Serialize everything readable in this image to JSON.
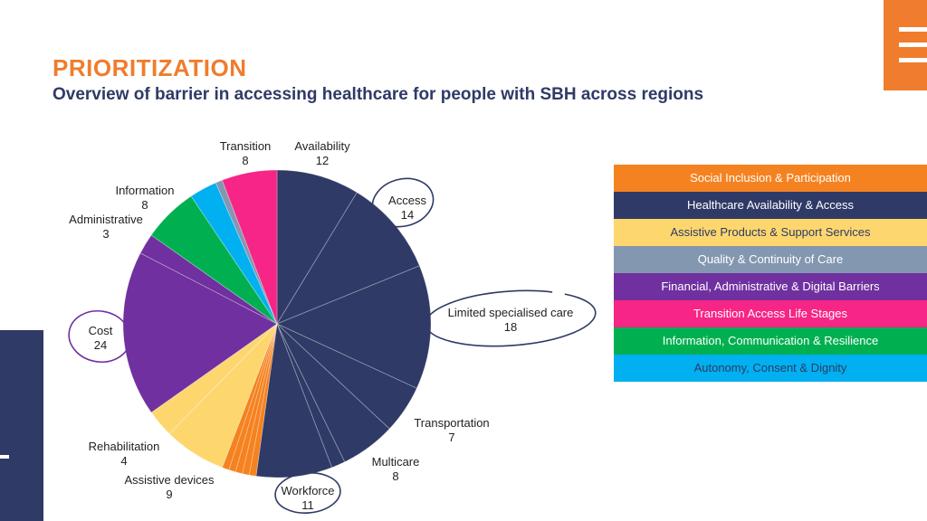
{
  "header": {
    "title": "PRIORITIZATION",
    "subtitle": "Overview of barrier in accessing healthcare for people with SBH across regions"
  },
  "legend": [
    {
      "label": "Social Inclusion & Participation",
      "color": "#f58220",
      "text_color": "#ffffff"
    },
    {
      "label": "Healthcare Availability & Access",
      "color": "#2f3a66",
      "text_color": "#ffffff"
    },
    {
      "label": "Assistive Products & Support Services",
      "color": "#fdd76e",
      "text_color": "#2f3a66"
    },
    {
      "label": "Quality & Continuity of Care",
      "color": "#8497b0",
      "text_color": "#ffffff"
    },
    {
      "label": "Financial, Administrative & Digital Barriers",
      "color": "#7030a0",
      "text_color": "#ffffff"
    },
    {
      "label": "Transition Access Life Stages",
      "color": "#f72585",
      "text_color": "#ffffff"
    },
    {
      "label": "Information, Communication & Resilience",
      "color": "#00b050",
      "text_color": "#ffffff"
    },
    {
      "label": "Autonomy, Consent & Dignity",
      "color": "#00b0f0",
      "text_color": "#2f3a66"
    }
  ],
  "chart_data": {
    "type": "pie",
    "title": "",
    "slices": [
      {
        "name": "Availability",
        "value": 12,
        "color": "#2f3a66",
        "show_label": true
      },
      {
        "name": "Access",
        "value": 14,
        "color": "#2f3a66",
        "show_label": true
      },
      {
        "name": "Limited specialised care",
        "value": 18,
        "color": "#2f3a66",
        "show_label": true
      },
      {
        "name": "Transportation",
        "value": 7,
        "color": "#2f3a66",
        "show_label": true
      },
      {
        "name": "Multicare",
        "value": 8,
        "color": "#2f3a66",
        "show_label": true
      },
      {
        "name": "",
        "value": 2,
        "color": "#2f3a66",
        "show_label": false
      },
      {
        "name": "Workforce",
        "value": 11,
        "color": "#2f3a66",
        "show_label": true
      },
      {
        "name": "",
        "value": 1,
        "color": "#f58220",
        "show_label": false
      },
      {
        "name": "",
        "value": 1,
        "color": "#f58220",
        "show_label": false
      },
      {
        "name": "",
        "value": 1,
        "color": "#f58220",
        "show_label": false
      },
      {
        "name": "",
        "value": 1,
        "color": "#f58220",
        "show_label": false
      },
      {
        "name": "",
        "value": 1,
        "color": "#f58220",
        "show_label": false
      },
      {
        "name": "Assistive devices",
        "value": 9,
        "color": "#fdd76e",
        "show_label": true
      },
      {
        "name": "Rehabilitation",
        "value": 4,
        "color": "#fdd76e",
        "show_label": true
      },
      {
        "name": "Cost",
        "value": 24,
        "color": "#7030a0",
        "show_label": true
      },
      {
        "name": "Administrative",
        "value": 3,
        "color": "#7030a0",
        "show_label": true
      },
      {
        "name": "Information",
        "value": 8,
        "color": "#00b050",
        "show_label": true
      },
      {
        "name": "",
        "value": 4,
        "color": "#00b0f0",
        "show_label": false
      },
      {
        "name": "",
        "value": 1,
        "color": "#8497b0",
        "show_label": false
      },
      {
        "name": "Transition",
        "value": 8,
        "color": "#f72585",
        "show_label": true
      }
    ],
    "highlighted": [
      "Access",
      "Limited specialised care",
      "Cost",
      "Workforce"
    ],
    "legend_placement": "right"
  }
}
